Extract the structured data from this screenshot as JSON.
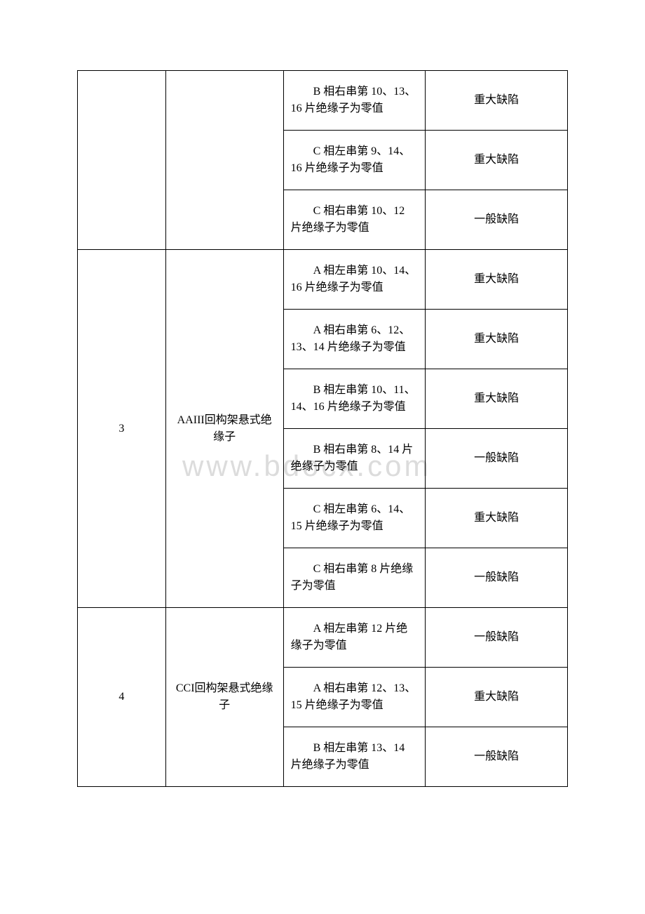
{
  "watermark": "www.bdocx.com",
  "groups": [
    {
      "id": "",
      "name": "",
      "rows": [
        {
          "desc": "B 相右串第 10、13、16 片绝缘子为零值",
          "level": "重大缺陷"
        },
        {
          "desc": "C 相左串第 9、14、16 片绝缘子为零值",
          "level": "重大缺陷"
        },
        {
          "desc": "C 相右串第 10、12 片绝缘子为零值",
          "level": "一般缺陷"
        }
      ]
    },
    {
      "id": "3",
      "name": "AAIII回构架悬式绝缘子",
      "rows": [
        {
          "desc": "A 相左串第 10、14、16 片绝缘子为零值",
          "level": "重大缺陷"
        },
        {
          "desc": "A 相右串第 6、12、13、14 片绝缘子为零值",
          "level": "重大缺陷"
        },
        {
          "desc": "B 相左串第 10、11、14、16 片绝缘子为零值",
          "level": "重大缺陷"
        },
        {
          "desc": "B 相右串第 8、14 片绝缘子为零值",
          "level": "一般缺陷"
        },
        {
          "desc": "C 相左串第 6、14、15 片绝缘子为零值",
          "level": "重大缺陷"
        },
        {
          "desc": "C 相右串第 8 片绝缘子为零值",
          "level": "一般缺陷"
        }
      ]
    },
    {
      "id": "4",
      "name": "CCI回构架悬式绝缘子",
      "rows": [
        {
          "desc": "A 相左串第 12 片绝缘子为零值",
          "level": "一般缺陷"
        },
        {
          "desc": "A 相右串第 12、13、15 片绝缘子为零值",
          "level": "重大缺陷"
        },
        {
          "desc": "B 相左串第 13、14 片绝缘子为零值",
          "level": "一般缺陷"
        }
      ]
    }
  ]
}
